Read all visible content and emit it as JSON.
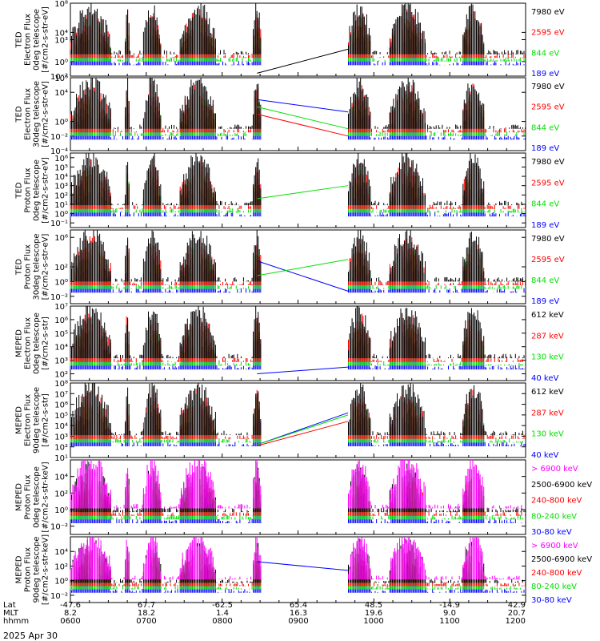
{
  "figure": {
    "date_label": "2025 Apr 30",
    "footer_rows": [
      {
        "label": "Lat",
        "values": [
          "-47.6",
          "67.7",
          "-62.5",
          "65.4",
          "48.5",
          "-14.9",
          "42.9"
        ]
      },
      {
        "label": "MLT",
        "values": [
          "8.2",
          "18.2",
          "1.4",
          "16.3",
          "19.6",
          "9.0",
          "20.7"
        ]
      },
      {
        "label": "hhmm",
        "values": [
          "0600",
          "0700",
          "0800",
          "0900",
          "1000",
          "1100",
          "1200"
        ]
      }
    ]
  },
  "colors": {
    "black": "#000000",
    "red": "#ff0000",
    "green": "#00e000",
    "blue": "#0000ff",
    "magenta": "#ff00ff"
  },
  "chart_data": [
    {
      "type": "line",
      "ylabel_lines": [
        "TED",
        "Electron Flux",
        "0deg telescope",
        "[#/cm2-s-str-eV]"
      ],
      "yticks": [
        {
          "v": -2,
          "label": "10⁻²"
        },
        {
          "v": 0,
          "label": "10⁰"
        },
        {
          "v": 3,
          "label": "10³"
        },
        {
          "v": 4,
          "label": "10⁴"
        },
        {
          "v": 8,
          "label": "10⁸"
        }
      ],
      "ylim_log10": [
        -2,
        8
      ],
      "legend": [
        {
          "label": "7980 eV",
          "color": "black"
        },
        {
          "label": "2595 eV",
          "color": "red"
        },
        {
          "label": "844 eV",
          "color": "green"
        },
        {
          "label": "189 eV",
          "color": "blue"
        }
      ],
      "gap_line": {
        "color": "black",
        "x": [
          0.41,
          0.61
        ],
        "y": [
          -1.6,
          1.7
        ]
      }
    },
    {
      "type": "line",
      "ylabel_lines": [
        "TED",
        "Electron Flux",
        "30deg telescope",
        "[#/cm2-s-str-eV]"
      ],
      "yticks": [
        {
          "v": -4,
          "label": "10⁻⁴"
        },
        {
          "v": -2,
          "label": "10⁻²"
        },
        {
          "v": 0,
          "label": "10⁰"
        },
        {
          "v": 4,
          "label": "10⁴"
        },
        {
          "v": 6,
          "label": "10⁶"
        }
      ],
      "ylim_log10": [
        -4,
        6
      ],
      "legend": [
        {
          "label": "7980 eV",
          "color": "black"
        },
        {
          "label": "2595 eV",
          "color": "red"
        },
        {
          "label": "844 eV",
          "color": "green"
        },
        {
          "label": "189 eV",
          "color": "blue"
        }
      ],
      "gap_lines": [
        {
          "color": "blue",
          "x": [
            0.41,
            0.61
          ],
          "y": [
            3.0,
            1.3
          ]
        },
        {
          "color": "green",
          "x": [
            0.41,
            0.61
          ],
          "y": [
            2.0,
            -1.0
          ]
        },
        {
          "color": "red",
          "x": [
            0.41,
            0.61
          ],
          "y": [
            1.0,
            -2.0
          ]
        }
      ]
    },
    {
      "type": "line",
      "ylabel_lines": [
        "TED",
        "Proton Flux",
        "0deg telescope",
        "[#/cm2-s-str-eV]"
      ],
      "yticks": [
        {
          "v": -1,
          "label": "10⁻¹"
        },
        {
          "v": 0,
          "label": "10⁰"
        },
        {
          "v": 1,
          "label": "10¹"
        },
        {
          "v": 2,
          "label": "10²"
        },
        {
          "v": 3,
          "label": "10³"
        },
        {
          "v": 4,
          "label": "10⁴"
        },
        {
          "v": 5,
          "label": "10⁵"
        },
        {
          "v": 6,
          "label": "10⁶"
        }
      ],
      "ylim_log10": [
        -1.5,
        6.5
      ],
      "legend": [
        {
          "label": "7980 eV",
          "color": "black"
        },
        {
          "label": "2595 eV",
          "color": "red"
        },
        {
          "label": "844 eV",
          "color": "green"
        },
        {
          "label": "189 eV",
          "color": "blue"
        }
      ],
      "gap_line": {
        "color": "green",
        "x": [
          0.41,
          0.61
        ],
        "y": [
          1.6,
          3.0
        ]
      }
    },
    {
      "type": "line",
      "ylabel_lines": [
        "TED",
        "Proton Flux",
        "30deg telescope",
        "[#/cm2-s-str-eV]"
      ],
      "yticks": [
        {
          "v": -2,
          "label": "10⁻²"
        },
        {
          "v": 0,
          "label": "10⁰"
        },
        {
          "v": 2,
          "label": "10²"
        },
        {
          "v": 6,
          "label": "10⁶"
        }
      ],
      "ylim_log10": [
        -3,
        7
      ],
      "legend": [
        {
          "label": "7980 eV",
          "color": "black"
        },
        {
          "label": "2595 eV",
          "color": "red"
        },
        {
          "label": "844 eV",
          "color": "green"
        },
        {
          "label": "189 eV",
          "color": "blue"
        }
      ],
      "gap_lines": [
        {
          "color": "blue",
          "x": [
            0.41,
            0.61
          ],
          "y": [
            2.8,
            -1.3
          ]
        },
        {
          "color": "green",
          "x": [
            0.41,
            0.61
          ],
          "y": [
            0.8,
            3.0
          ]
        }
      ]
    },
    {
      "type": "line",
      "ylabel_lines": [
        "MEPED",
        "Electron Flux",
        "0deg telescope",
        "[#/cm2-s-str]"
      ],
      "yticks": [
        {
          "v": 2,
          "label": "10²"
        },
        {
          "v": 3,
          "label": "10³"
        },
        {
          "v": 4,
          "label": "10⁴"
        },
        {
          "v": 5,
          "label": "10⁵"
        },
        {
          "v": 6,
          "label": "10⁶"
        },
        {
          "v": 7,
          "label": "10⁷"
        }
      ],
      "ylim_log10": [
        1.5,
        7
      ],
      "legend": [
        {
          "label": "612 keV",
          "color": "black"
        },
        {
          "label": "287 keV",
          "color": "red"
        },
        {
          "label": "130 keV",
          "color": "green"
        },
        {
          "label": "40 keV",
          "color": "blue"
        }
      ],
      "gap_line": {
        "color": "blue",
        "x": [
          0.41,
          0.61
        ],
        "y": [
          2.0,
          2.5
        ]
      }
    },
    {
      "type": "line",
      "ylabel_lines": [
        "MEPED",
        "Electron Flux",
        "90deg telescope",
        "[#/cm2-s-str]"
      ],
      "yticks": [
        {
          "v": 1,
          "label": "10¹"
        },
        {
          "v": 2,
          "label": "10²"
        },
        {
          "v": 3,
          "label": "10³"
        },
        {
          "v": 4,
          "label": "10⁴"
        },
        {
          "v": 5,
          "label": "10⁵"
        },
        {
          "v": 6,
          "label": "10⁶"
        },
        {
          "v": 7,
          "label": "10⁷"
        },
        {
          "v": 8,
          "label": "10⁸"
        }
      ],
      "ylim_log10": [
        1,
        8
      ],
      "legend": [
        {
          "label": "612 keV",
          "color": "black"
        },
        {
          "label": "287 keV",
          "color": "red"
        },
        {
          "label": "130 keV",
          "color": "green"
        },
        {
          "label": "40 keV",
          "color": "blue"
        }
      ],
      "gap_lines": [
        {
          "color": "blue",
          "x": [
            0.41,
            0.61
          ],
          "y": [
            2.2,
            5.2
          ]
        },
        {
          "color": "green",
          "x": [
            0.41,
            0.61
          ],
          "y": [
            2.2,
            5.0
          ]
        },
        {
          "color": "red",
          "x": [
            0.41,
            0.61
          ],
          "y": [
            2.1,
            4.4
          ]
        }
      ]
    },
    {
      "type": "line",
      "ylabel_lines": [
        "MEPED",
        "Proton Flux",
        "0deg telescope",
        "[#/cm2-s-str-keV]"
      ],
      "yticks": [
        {
          "v": -2,
          "label": "10⁻²"
        },
        {
          "v": 0,
          "label": "10⁰"
        },
        {
          "v": 2,
          "label": "10²"
        },
        {
          "v": 4,
          "label": "10⁴"
        }
      ],
      "ylim_log10": [
        -3,
        6
      ],
      "legend": [
        {
          "label": "> 6900 keV",
          "color": "magenta"
        },
        {
          "label": "2500-6900 keV",
          "color": "black"
        },
        {
          "label": "240-800 keV",
          "color": "red"
        },
        {
          "label": "80-240 keV",
          "color": "green"
        },
        {
          "label": "30-80 keV",
          "color": "blue"
        }
      ]
    },
    {
      "type": "line",
      "ylabel_lines": [
        "MEPED",
        "Proton Flux",
        "90deg telescope",
        "[#/cm2-s-str-keV]"
      ],
      "yticks": [
        {
          "v": -2,
          "label": "10⁻²"
        },
        {
          "v": 0,
          "label": "10⁰"
        },
        {
          "v": 2,
          "label": "10²"
        },
        {
          "v": 4,
          "label": "10⁴"
        }
      ],
      "ylim_log10": [
        -3,
        6
      ],
      "legend": [
        {
          "label": "> 6900 keV",
          "color": "magenta"
        },
        {
          "label": "2500-6900 keV",
          "color": "black"
        },
        {
          "label": "240-800 keV",
          "color": "red"
        },
        {
          "label": "80-240 keV",
          "color": "green"
        },
        {
          "label": "30-80 keV",
          "color": "blue"
        }
      ],
      "gap_line": {
        "color": "blue",
        "x": [
          0.41,
          0.61
        ],
        "y": [
          2.6,
          1.4
        ]
      }
    }
  ]
}
